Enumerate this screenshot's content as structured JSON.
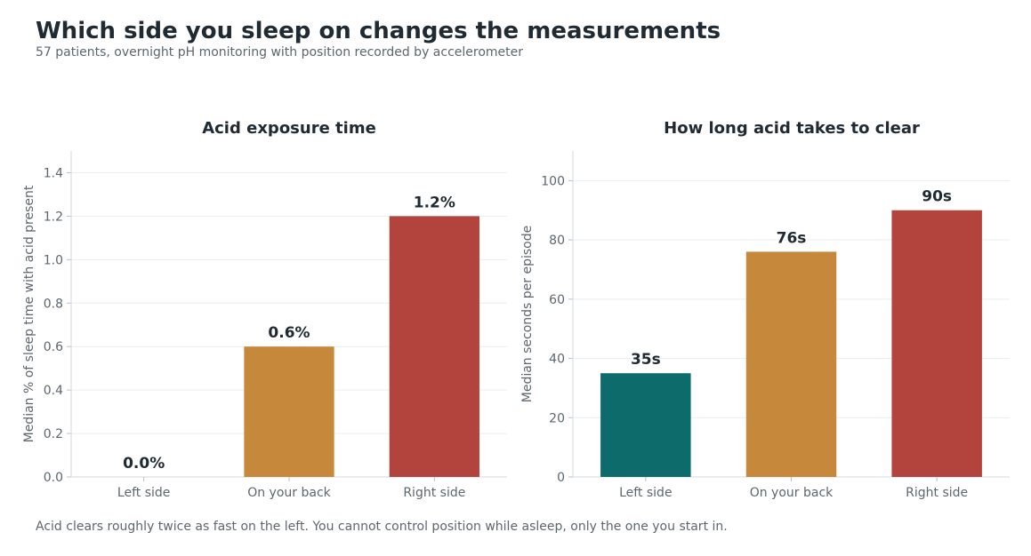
{
  "title": "Which side you sleep on changes the measurements",
  "subtitle": "57 patients, overnight pH monitoring with position recorded by accelerometer",
  "footnote": "Acid clears roughly twice as fast on the left. You cannot control position while asleep, only the one you start in.",
  "chart_data": [
    {
      "type": "bar",
      "title": "Acid exposure time",
      "xlabel": "",
      "ylabel": "Median % of sleep time with acid present",
      "categories": [
        "Left side",
        "On your back",
        "Right side"
      ],
      "values": [
        0.0,
        0.6,
        1.2
      ],
      "data_labels": [
        "0.0%",
        "0.6%",
        "1.2%"
      ],
      "colors": [
        "#0e6b6b",
        "#c6883a",
        "#b3433d"
      ],
      "ylim": [
        0,
        1.5
      ],
      "yticks": [
        0.0,
        0.2,
        0.4,
        0.6,
        0.8,
        1.0,
        1.2,
        1.4
      ],
      "ytick_labels": [
        "0.0",
        "0.2",
        "0.4",
        "0.6",
        "0.8",
        "1.0",
        "1.2",
        "1.4"
      ],
      "grid": true
    },
    {
      "type": "bar",
      "title": "How long acid takes to clear",
      "xlabel": "",
      "ylabel": "Median seconds per episode",
      "categories": [
        "Left side",
        "On your back",
        "Right side"
      ],
      "values": [
        35,
        76,
        90
      ],
      "data_labels": [
        "35s",
        "76s",
        "90s"
      ],
      "colors": [
        "#0e6b6b",
        "#c6883a",
        "#b3433d"
      ],
      "ylim": [
        0,
        110
      ],
      "yticks": [
        0,
        20,
        40,
        60,
        80,
        100
      ],
      "ytick_labels": [
        "0",
        "20",
        "40",
        "60",
        "80",
        "100"
      ],
      "grid": true
    }
  ]
}
